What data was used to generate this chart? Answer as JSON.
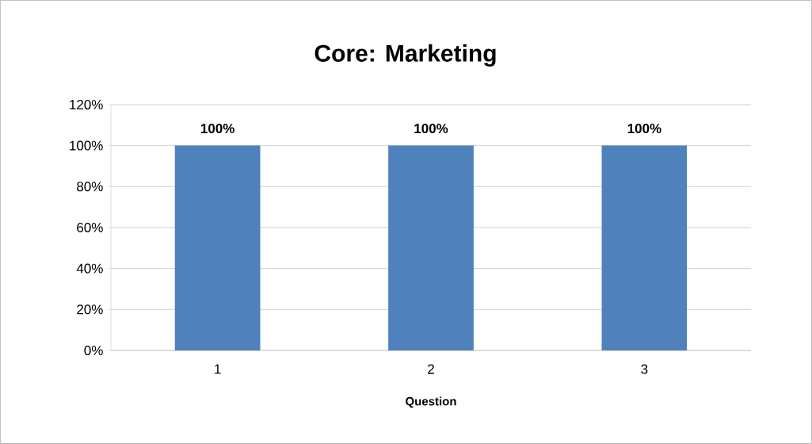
{
  "chart_data": {
    "type": "bar",
    "title": "Core: Marketing",
    "xlabel": "Question",
    "categories": [
      "1",
      "2",
      "3"
    ],
    "values": [
      100,
      100,
      100
    ],
    "color": "#4f81bd",
    "ylim": [
      0,
      120
    ],
    "yticks": [
      {
        "value": 0,
        "label": "0%"
      },
      {
        "value": 20,
        "label": "20%"
      },
      {
        "value": 40,
        "label": "40%"
      },
      {
        "value": 60,
        "label": "60%"
      },
      {
        "value": 80,
        "label": "80%"
      },
      {
        "value": 100,
        "label": "100%"
      },
      {
        "value": 120,
        "label": "120%"
      }
    ],
    "grid": "y",
    "value_labels": [
      "100%",
      "100%",
      "100%"
    ]
  }
}
